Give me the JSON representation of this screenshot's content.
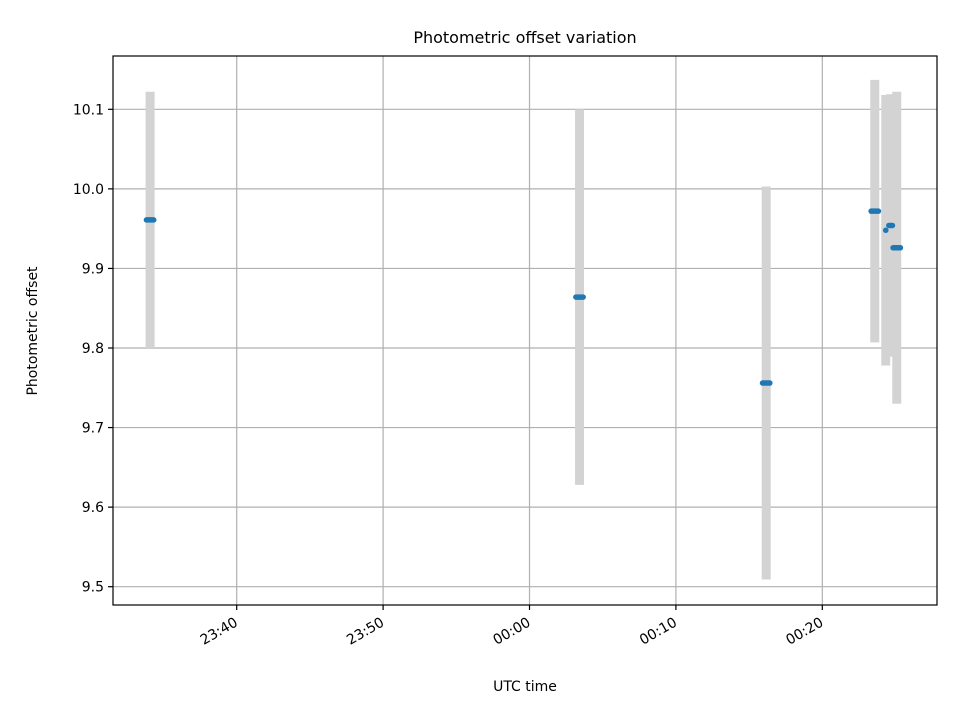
{
  "chart_data": {
    "type": "scatter",
    "title": "Photometric offset variation",
    "xlabel": "UTC time",
    "ylabel": "Photometric offset",
    "x_is_time": true,
    "xlim": [
      "23:31:33",
      "00:27:50"
    ],
    "ylim": [
      9.477,
      10.167
    ],
    "grid": true,
    "x_ticks": [
      "23:40",
      "23:50",
      "00:00",
      "00:10",
      "00:20"
    ],
    "y_ticks": [
      9.5,
      9.6,
      9.7,
      9.8,
      9.9,
      10.0,
      10.1
    ],
    "colors": {
      "points": "#1f77b4",
      "error_bars": "#d3d3d3",
      "grid": "#b0b0b0"
    },
    "series": [
      {
        "points": [
          {
            "x": "23:34:05",
            "y": 9.961,
            "yerr": 0.161,
            "xspan": 0.5
          },
          {
            "x": "00:03:25",
            "y": 9.864,
            "yerr": 0.236,
            "xspan": 0.5
          },
          {
            "x": "00:16:10",
            "y": 9.756,
            "yerr": 0.247,
            "xspan": 0.5
          },
          {
            "x": "00:23:35",
            "y": 9.972,
            "yerr": 0.165,
            "xspan": 0.5
          },
          {
            "x": "00:24:20",
            "y": 9.948,
            "yerr": 0.17,
            "xspan": 0
          },
          {
            "x": "00:24:40",
            "y": 9.954,
            "yerr": 0.165,
            "xspan": 0.25
          },
          {
            "x": "00:25:05",
            "y": 9.926,
            "yerr": 0.196,
            "xspan": 0.5
          }
        ]
      }
    ]
  }
}
